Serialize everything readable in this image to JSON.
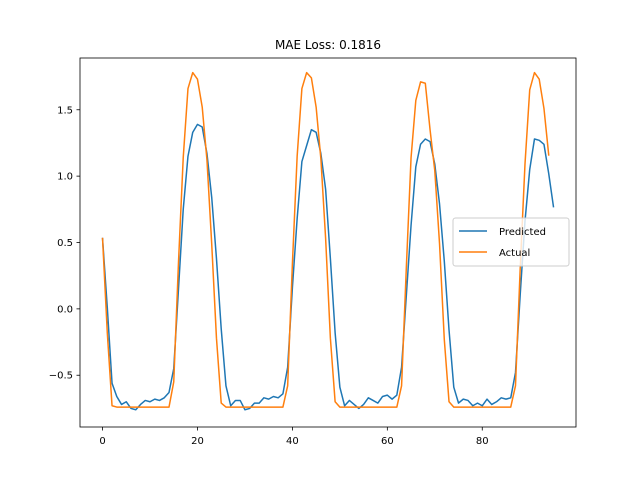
{
  "chart_data": {
    "type": "line",
    "title": "MAE Loss: 0.1816",
    "xlabel": "",
    "ylabel": "",
    "xlim": [
      -4.75,
      99.75
    ],
    "ylim": [
      -0.89,
      1.89
    ],
    "xticks": [
      0,
      20,
      40,
      60,
      80
    ],
    "yticks": [
      -0.5,
      0.0,
      0.5,
      1.0,
      1.5
    ],
    "ytick_labels": [
      "−0.5",
      "0.0",
      "0.5",
      "1.0",
      "1.5"
    ],
    "grid": false,
    "legend_position": "center-right",
    "series": [
      {
        "name": "Predicted",
        "color": "#1f77b4",
        "values": [
          0.53,
          0.01,
          -0.56,
          -0.66,
          -0.72,
          -0.7,
          -0.75,
          -0.76,
          -0.72,
          -0.69,
          -0.7,
          -0.68,
          -0.69,
          -0.67,
          -0.63,
          -0.45,
          0.15,
          0.75,
          1.15,
          1.33,
          1.39,
          1.37,
          1.17,
          0.84,
          0.38,
          -0.15,
          -0.58,
          -0.73,
          -0.69,
          -0.69,
          -0.76,
          -0.75,
          -0.71,
          -0.71,
          -0.67,
          -0.68,
          -0.66,
          -0.67,
          -0.64,
          -0.44,
          0.16,
          0.68,
          1.11,
          1.23,
          1.35,
          1.33,
          1.17,
          0.9,
          0.38,
          -0.18,
          -0.59,
          -0.73,
          -0.69,
          -0.72,
          -0.75,
          -0.72,
          -0.67,
          -0.69,
          -0.71,
          -0.66,
          -0.65,
          -0.68,
          -0.65,
          -0.44,
          0.1,
          0.63,
          1.07,
          1.24,
          1.28,
          1.26,
          1.09,
          0.79,
          0.36,
          -0.16,
          -0.59,
          -0.71,
          -0.68,
          -0.69,
          -0.73,
          -0.71,
          -0.73,
          -0.68,
          -0.72,
          -0.7,
          -0.67,
          -0.68,
          -0.67,
          -0.48,
          0.11,
          0.66,
          1.05,
          1.28,
          1.27,
          1.24,
          1.02,
          0.77
        ]
      },
      {
        "name": "Actual",
        "color": "#ff7f0e",
        "values": [
          0.53,
          -0.18,
          -0.73,
          -0.74,
          -0.74,
          -0.74,
          -0.74,
          -0.74,
          -0.74,
          -0.74,
          -0.74,
          -0.74,
          -0.74,
          -0.74,
          -0.74,
          -0.55,
          0.35,
          1.14,
          1.66,
          1.78,
          1.73,
          1.52,
          1.12,
          0.49,
          -0.22,
          -0.71,
          -0.74,
          -0.74,
          -0.74,
          -0.74,
          -0.74,
          -0.74,
          -0.74,
          -0.74,
          -0.74,
          -0.74,
          -0.74,
          -0.74,
          -0.74,
          -0.58,
          0.34,
          1.15,
          1.66,
          1.78,
          1.74,
          1.52,
          1.13,
          0.53,
          -0.22,
          -0.7,
          -0.74,
          -0.74,
          -0.74,
          -0.74,
          -0.74,
          -0.74,
          -0.74,
          -0.74,
          -0.74,
          -0.74,
          -0.74,
          -0.74,
          -0.74,
          -0.58,
          0.31,
          1.14,
          1.57,
          1.71,
          1.7,
          1.35,
          1.04,
          0.49,
          -0.23,
          -0.7,
          -0.74,
          -0.74,
          -0.74,
          -0.74,
          -0.74,
          -0.74,
          -0.74,
          -0.74,
          -0.74,
          -0.74,
          -0.74,
          -0.74,
          -0.74,
          -0.58,
          0.31,
          1.09,
          1.65,
          1.78,
          1.73,
          1.51,
          1.16
        ]
      }
    ]
  }
}
